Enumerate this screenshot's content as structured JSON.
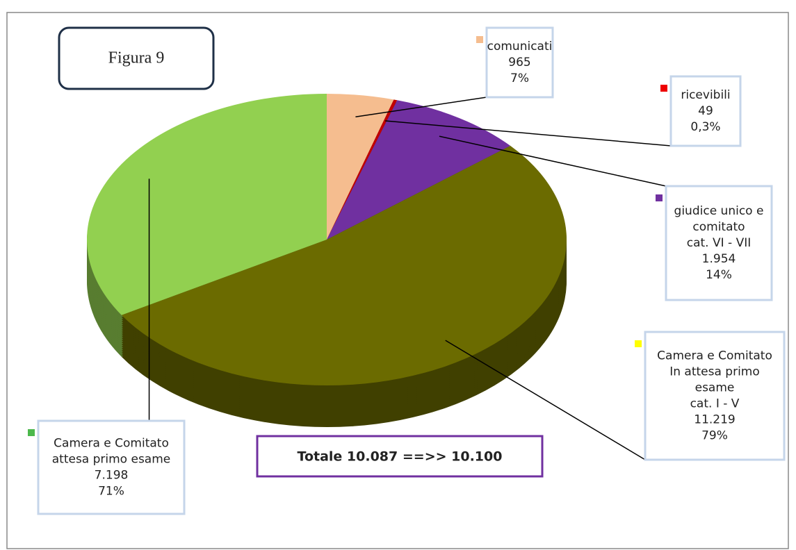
{
  "chart_data": {
    "type": "pie",
    "title": "Figura 9",
    "annotation": "Totale 10.087 ==>> 10.100",
    "categories": [
      [
        "comunicati"
      ],
      [
        "ricevibili"
      ],
      [
        "giudice unico e",
        "comitato",
        "cat. VI - VII"
      ],
      [
        "Camera e Comitato",
        "In attesa primo",
        "esame",
        "cat. I - V"
      ],
      [
        "Camera e Comitato",
        "attesa primo esame"
      ]
    ],
    "values": [
      965,
      49,
      1954,
      11219,
      7198
    ],
    "value_labels": [
      "965",
      "49",
      "1.954",
      "11.219",
      "7.198"
    ],
    "percentages": [
      7,
      0.3,
      14,
      79,
      71
    ],
    "percentage_labels": [
      "7%",
      "0,3%",
      "14%",
      "79%",
      "71%"
    ],
    "colors": [
      "#f5bd8f",
      "#c00000",
      "#7030a0",
      "#6b6b00",
      "#92d050"
    ],
    "marker_colors": [
      "#f5bd8f",
      "#ee0000",
      "#7030a0",
      "#ffff00",
      "#4cb84c"
    ]
  }
}
